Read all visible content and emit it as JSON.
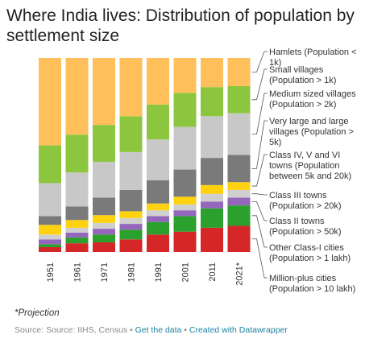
{
  "title": "Where India lives: Distribution of population by settlement size",
  "note": "*Projection",
  "footer": {
    "source": "Source: Source: IIHS, Census",
    "sep1": " • ",
    "get_data": "Get the data",
    "sep2": " • ",
    "created_with": "Created with Datawrapper"
  },
  "chart_data": {
    "type": "bar",
    "stacked": true,
    "categories": [
      "1951",
      "1961",
      "1971",
      "1981",
      "1991",
      "2001",
      "2011",
      "2021*"
    ],
    "ylim": [
      0,
      100
    ],
    "grid": false,
    "legend_position": "right, labels next to last bar",
    "series": [
      {
        "name": "Million-plus cities (Population > 10 lakh)",
        "color": "#d62728",
        "values": [
          2.5,
          4.5,
          5.0,
          6.5,
          9.0,
          10.5,
          12.5,
          13.5
        ]
      },
      {
        "name": "Other Class-I cities (Population > 1 lakh)",
        "color": "#2ca02c",
        "values": [
          1.5,
          3.0,
          4.0,
          5.0,
          6.5,
          8.0,
          10.0,
          10.5
        ]
      },
      {
        "name": "Class II towns (Population > 50k)",
        "color": "#9467bd",
        "values": [
          2.5,
          2.5,
          3.0,
          3.0,
          3.0,
          3.0,
          3.5,
          4.0
        ]
      },
      {
        "name": "Class III towns (Population > 20k)",
        "color": "#cfcfcf",
        "values": [
          2.5,
          2.5,
          3.0,
          3.0,
          3.0,
          3.0,
          4.0,
          4.0
        ]
      },
      {
        "name": "Class IV, V and VI towns (Population between 5k and 20k)",
        "color": "#ffd20f",
        "values": [
          5.0,
          4.0,
          4.0,
          3.5,
          3.5,
          4.0,
          4.5,
          4.0
        ]
      },
      {
        "name": "Very large and large villages (Population > 5k)",
        "color": "#7a7a7a",
        "values": [
          4.5,
          7.0,
          9.0,
          11.0,
          12.0,
          14.0,
          14.0,
          14.0
        ]
      },
      {
        "name": "Medium sized villages (Population > 2k)",
        "color": "#c8c8c8",
        "values": [
          17.0,
          17.5,
          18.5,
          19.5,
          21.0,
          22.0,
          21.5,
          21.5
        ]
      },
      {
        "name": "Small villages (Population > 1k)",
        "color": "#8cc63f",
        "values": [
          19.5,
          19.5,
          19.0,
          18.5,
          18.0,
          17.5,
          15.0,
          14.0
        ]
      },
      {
        "name": "Hamlets (Population < 1k)",
        "color": "#ffbf5a",
        "values": [
          45.0,
          39.5,
          34.5,
          30.0,
          24.0,
          18.0,
          15.0,
          14.5
        ]
      }
    ]
  }
}
